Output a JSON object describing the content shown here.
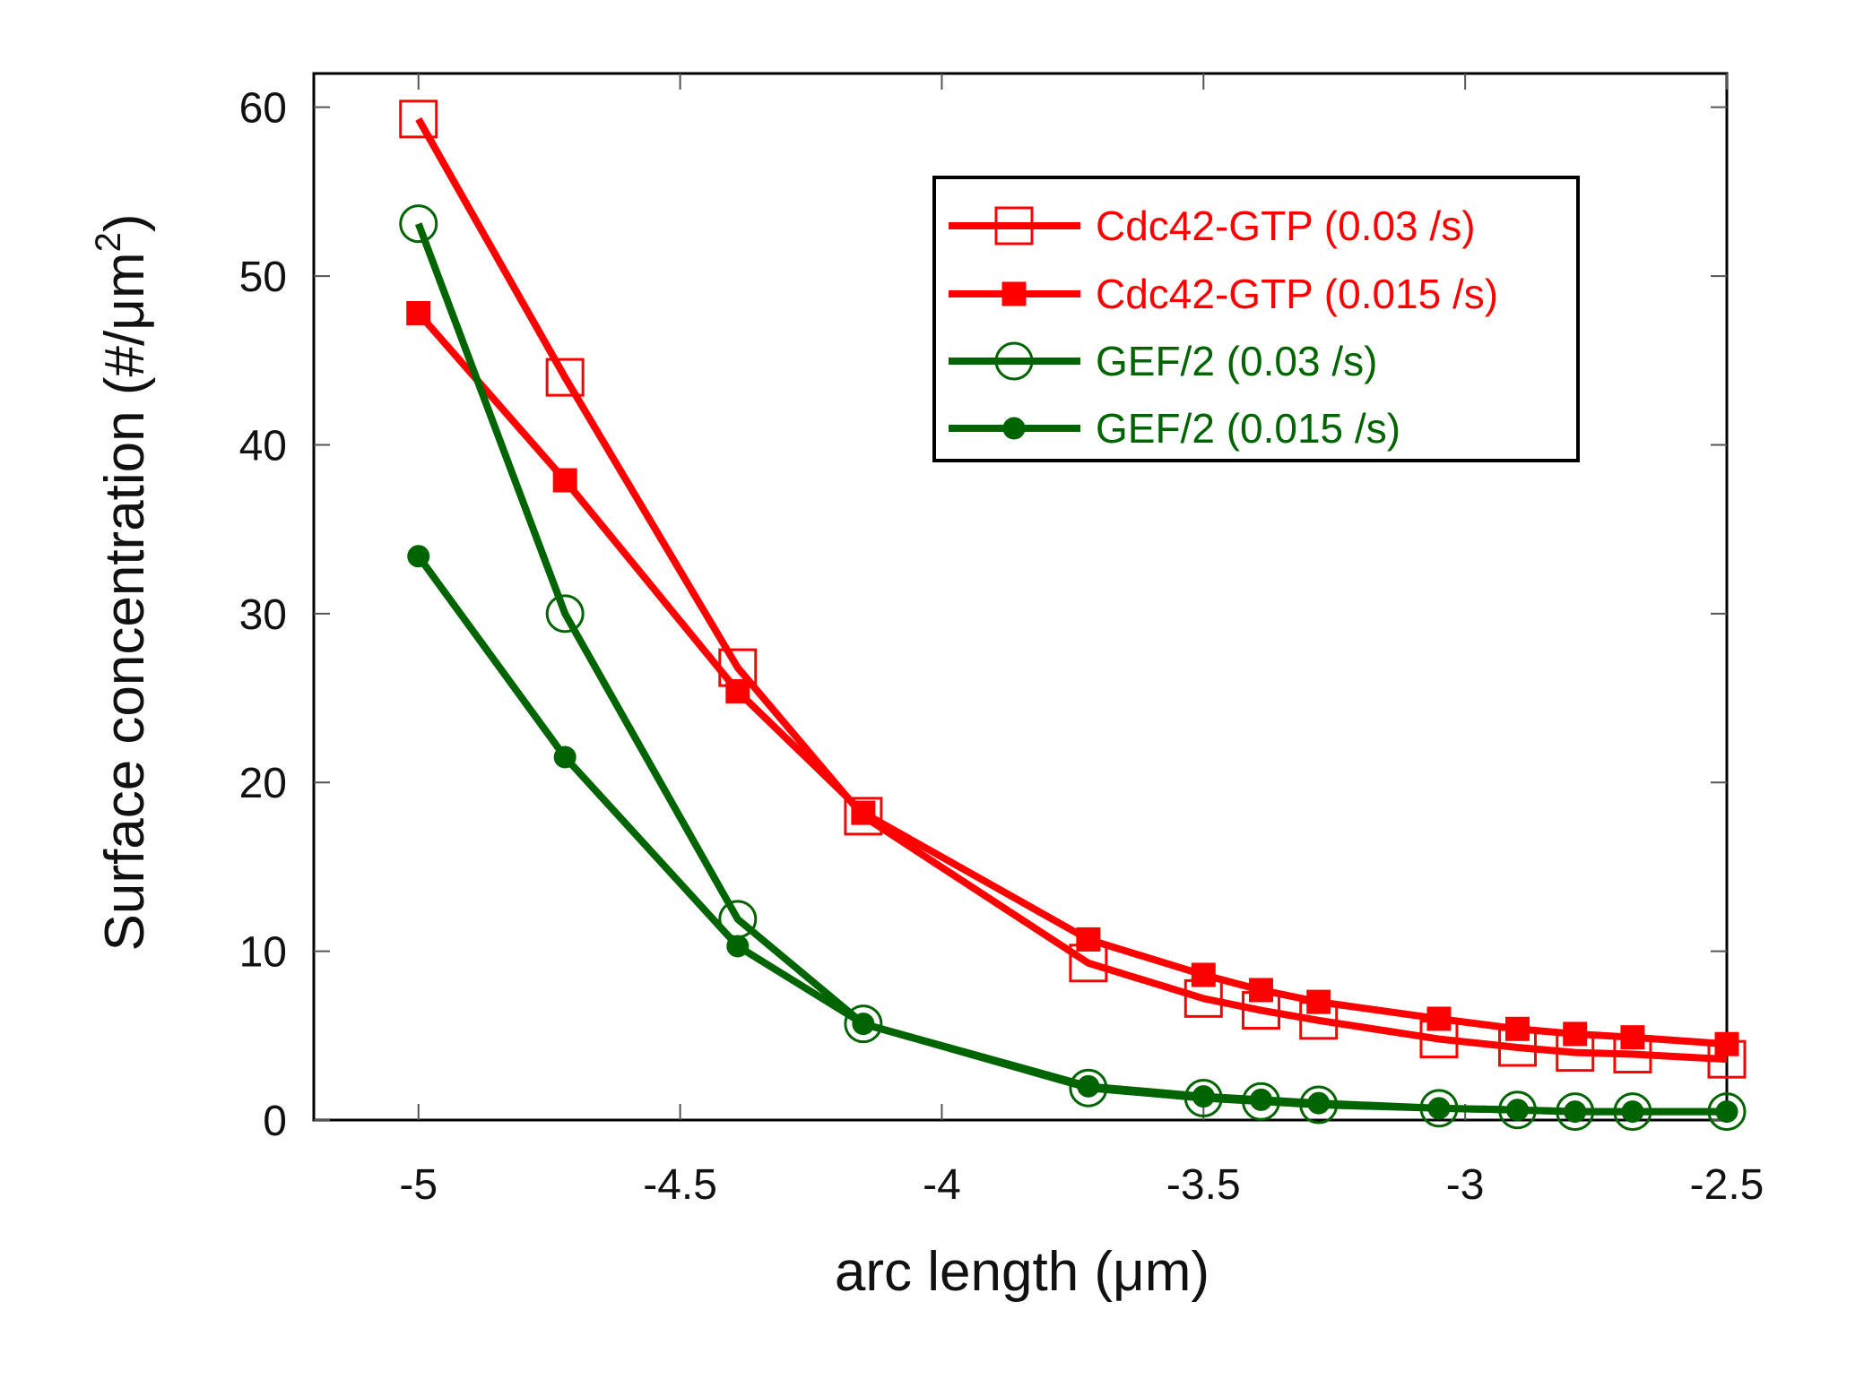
{
  "chart_data": {
    "type": "line",
    "title": "",
    "xlabel": "arc length (μm)",
    "ylabel_main": "Surface concentration (#/μm",
    "ylabel_sup": "2",
    "ylabel_end": ")",
    "xlim": [
      -5.2,
      -2.5
    ],
    "ylim": [
      0,
      62
    ],
    "x_ticks": [
      -5,
      -4.5,
      -4,
      -3.5,
      -3,
      -2.5
    ],
    "x_tick_labels": [
      "-5",
      "-4.5",
      "-4",
      "-3.5",
      "-3",
      "-2.5"
    ],
    "y_ticks": [
      0,
      10,
      20,
      30,
      40,
      50,
      60
    ],
    "y_tick_labels": [
      "0",
      "10",
      "20",
      "30",
      "40",
      "50",
      "60"
    ],
    "grid": false,
    "legend_position": "top-right",
    "series": [
      {
        "name": "Cdc42-GTP (0.03 /s)",
        "color": "#ff0000",
        "marker": "square-open",
        "x": [
          -5,
          -4.72,
          -4.39,
          -4.15,
          -3.72,
          -3.5,
          -3.39,
          -3.28,
          -3.05,
          -2.9,
          -2.79,
          -2.68,
          -2.5
        ],
        "y": [
          59.3,
          44,
          26.8,
          18,
          9.3,
          7.2,
          6.5,
          5.9,
          4.8,
          4.3,
          4.0,
          3.9,
          3.6
        ]
      },
      {
        "name": "Cdc42-GTP (0.015 /s)",
        "color": "#ff0000",
        "marker": "square-filled",
        "x": [
          -5,
          -4.72,
          -4.39,
          -4.15,
          -3.72,
          -3.5,
          -3.39,
          -3.28,
          -3.05,
          -2.9,
          -2.79,
          -2.68,
          -2.5
        ],
        "y": [
          47.8,
          37.9,
          25.4,
          18.2,
          10.7,
          8.6,
          7.7,
          7.0,
          6.0,
          5.4,
          5.1,
          4.9,
          4.5
        ]
      },
      {
        "name": "GEF/2 (0.03 /s)",
        "color": "#006400",
        "marker": "circle-open",
        "x": [
          -5,
          -4.72,
          -4.39,
          -4.15,
          -3.72,
          -3.5,
          -3.39,
          -3.28,
          -3.05,
          -2.9,
          -2.79,
          -2.68,
          -2.5
        ],
        "y": [
          53.1,
          30,
          11.9,
          5.7,
          1.9,
          1.3,
          1.1,
          0.9,
          0.7,
          0.6,
          0.5,
          0.5,
          0.5
        ]
      },
      {
        "name": "GEF/2 (0.015 /s)",
        "color": "#006400",
        "marker": "circle-filled",
        "x": [
          -5,
          -4.72,
          -4.39,
          -4.15,
          -3.72,
          -3.5,
          -3.39,
          -3.28,
          -3.05,
          -2.9,
          -2.79,
          -2.68,
          -2.5
        ],
        "y": [
          33.4,
          21.5,
          10.3,
          5.7,
          2.0,
          1.4,
          1.2,
          1.0,
          0.7,
          0.6,
          0.5,
          0.5,
          0.5
        ]
      }
    ]
  }
}
